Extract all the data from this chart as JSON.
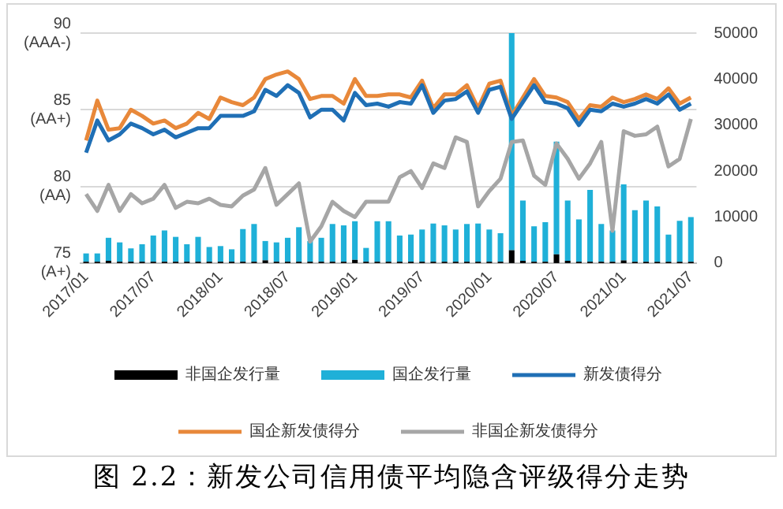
{
  "chart_data": {
    "type": "bar",
    "title": "图 2.2：新发公司信用债平均隐含评级得分走势",
    "categories": [
      "2017/01",
      null,
      null,
      null,
      null,
      null,
      "2017/07",
      null,
      null,
      null,
      null,
      null,
      "2018/01",
      null,
      null,
      null,
      null,
      null,
      "2018/07",
      null,
      null,
      null,
      null,
      null,
      "2019/01",
      null,
      null,
      null,
      null,
      null,
      "2019/07",
      null,
      null,
      null,
      null,
      null,
      "2020/01",
      null,
      null,
      null,
      null,
      null,
      "2020/07",
      null,
      null,
      null,
      null,
      null,
      "2021/01",
      null,
      null,
      null,
      null,
      null,
      "2021/07"
    ],
    "stacked": true,
    "grid": "y",
    "legend": "bottom",
    "ylim": [
      75,
      90
    ],
    "yticks": [
      {
        "value": 75,
        "label": "75\n(A+)"
      },
      {
        "value": 80,
        "label": "80\n(AA)"
      },
      {
        "value": 85,
        "label": "85\n(AA+)"
      },
      {
        "value": 90,
        "label": "90\n(AAA-)"
      }
    ],
    "y2lim": [
      0,
      50000
    ],
    "y2ticks": [
      0,
      10000,
      20000,
      30000,
      40000,
      50000
    ],
    "series": [
      {
        "name": "非国企发行量",
        "axis": "y2",
        "color": "#000000",
        "values": [
          300,
          300,
          500,
          300,
          300,
          300,
          300,
          300,
          300,
          300,
          300,
          300,
          300,
          300,
          300,
          300,
          600,
          300,
          300,
          300,
          300,
          300,
          300,
          300,
          700,
          300,
          300,
          300,
          300,
          300,
          300,
          300,
          300,
          300,
          300,
          300,
          300,
          300,
          2800,
          500,
          300,
          300,
          1900,
          500,
          300,
          300,
          300,
          300,
          600,
          300,
          300,
          300,
          300,
          300,
          300
        ]
      },
      {
        "name": "国企发行量",
        "axis": "y2",
        "color": "#1fb0d8",
        "values": [
          1800,
          1800,
          5000,
          4200,
          2900,
          3800,
          5700,
          6800,
          5400,
          3800,
          5400,
          3200,
          3400,
          2700,
          7100,
          8200,
          4200,
          4200,
          5200,
          7500,
          4500,
          5200,
          8200,
          7900,
          8400,
          3000,
          8800,
          8800,
          5700,
          5900,
          7000,
          8300,
          7900,
          7000,
          8200,
          8300,
          7000,
          6200,
          47200,
          13100,
          7700,
          8600,
          24500,
          13100,
          9200,
          15600,
          8200,
          6800,
          16500,
          11200,
          13300,
          12000,
          5900,
          8900,
          9700
        ]
      },
      {
        "name": "新发债得分",
        "type": "line",
        "color": "#1f6fb5",
        "values": [
          82.2,
          84.3,
          83.0,
          83.4,
          84.1,
          83.8,
          83.4,
          83.7,
          83.2,
          83.5,
          83.8,
          83.8,
          84.6,
          84.6,
          84.6,
          84.9,
          86.3,
          85.9,
          86.6,
          86.1,
          84.5,
          85.0,
          85.0,
          84.3,
          86.1,
          85.3,
          85.4,
          85.2,
          85.5,
          85.4,
          86.6,
          84.8,
          85.6,
          85.7,
          86.2,
          84.8,
          86.3,
          86.5,
          84.4,
          85.5,
          86.6,
          85.5,
          85.4,
          85.1,
          84.0,
          85.0,
          84.9,
          85.4,
          85.2,
          85.4,
          85.7,
          85.4,
          86.0,
          85.0,
          85.4
        ]
      },
      {
        "name": "国企新发债得分",
        "type": "line",
        "color": "#e8883a",
        "values": [
          83.0,
          85.6,
          83.7,
          83.8,
          85.0,
          84.6,
          84.1,
          84.3,
          83.8,
          84.1,
          84.8,
          84.4,
          85.8,
          85.5,
          85.3,
          85.8,
          87.0,
          87.3,
          87.5,
          87.0,
          85.7,
          85.9,
          85.9,
          85.4,
          87.0,
          85.9,
          85.9,
          86.0,
          86.0,
          85.8,
          86.9,
          85.1,
          86.0,
          86.0,
          86.6,
          85.1,
          86.7,
          86.9,
          84.6,
          85.8,
          87.0,
          85.9,
          85.8,
          85.5,
          84.4,
          85.3,
          85.2,
          85.8,
          85.5,
          85.7,
          86.0,
          85.7,
          86.4,
          85.4,
          85.8
        ]
      },
      {
        "name": "非国企新发债得分",
        "type": "line",
        "color": "#a6a6a6",
        "values": [
          79.5,
          78.4,
          80.1,
          78.4,
          79.5,
          78.9,
          79.2,
          80.1,
          78.6,
          79.0,
          78.9,
          79.2,
          78.8,
          78.7,
          79.4,
          79.8,
          81.2,
          78.8,
          79.5,
          80.2,
          76.4,
          77.4,
          79.0,
          78.4,
          78.0,
          79.0,
          79.0,
          79.0,
          80.6,
          81.0,
          79.9,
          81.5,
          81.2,
          83.2,
          82.9,
          78.7,
          79.7,
          80.5,
          82.9,
          83.0,
          80.7,
          80.1,
          82.8,
          81.8,
          80.5,
          81.5,
          82.9,
          77.1,
          83.6,
          83.3,
          83.4,
          83.9,
          81.3,
          81.8,
          84.4
        ]
      }
    ]
  }
}
